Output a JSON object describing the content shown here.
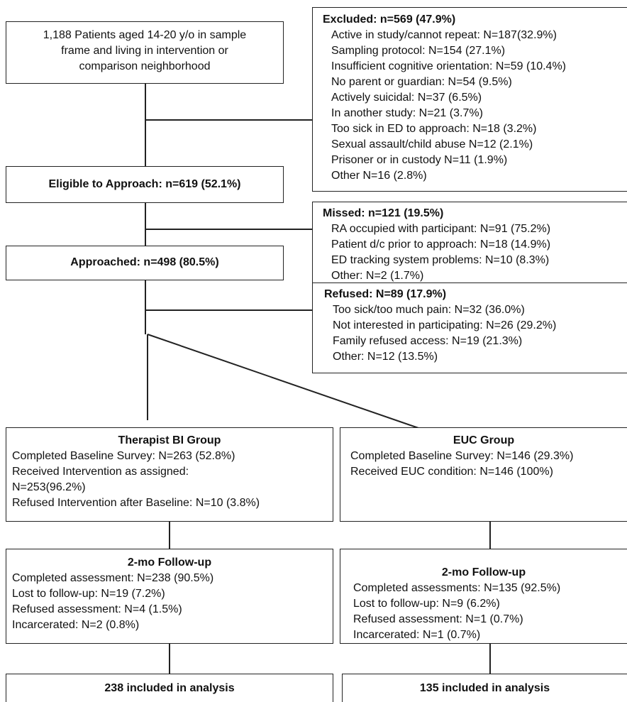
{
  "top": {
    "line1": "1,188 Patients aged 14-20 y/o in sample",
    "line2": "frame and living in intervention or",
    "line3": "comparison neighborhood"
  },
  "excluded": {
    "header": "Excluded: n=569 (47.9%)",
    "items": [
      "Active in study/cannot repeat: N=187(32.9%)",
      "Sampling protocol: N=154 (27.1%)",
      "Insufficient cognitive orientation: N=59 (10.4%)",
      "No parent or guardian:  N=54 (9.5%)",
      "Actively suicidal: N=37 (6.5%)",
      "In another study: N=21 (3.7%)",
      "Too sick in ED to approach: N=18 (3.2%)",
      "Sexual assault/child abuse N=12 (2.1%)",
      "Prisoner or in custody N=11 (1.9%)",
      "Other N=16 (2.8%)"
    ]
  },
  "eligible": "Eligible to Approach: n=619 (52.1%)",
  "missed": {
    "header": "Missed: n=121 (19.5%)",
    "items": [
      "RA occupied with participant: N=91 (75.2%)",
      "Patient d/c prior to approach: N=18 (14.9%)",
      "ED tracking system problems: N=10 (8.3%)",
      "Other: N=2 (1.7%)"
    ]
  },
  "approached": "Approached: n=498 (80.5%)",
  "refused": {
    "header": "Refused: N=89 (17.9%)",
    "items": [
      "Too sick/too much pain: N=32 (36.0%)",
      "Not interested in participating: N=26 (29.2%)",
      "Family refused access: N=19 (21.3%)",
      "Other: N=12 (13.5%)"
    ]
  },
  "therapist": {
    "title": "Therapist BI Group",
    "items": [
      "Completed Baseline Survey: N=263 (52.8%)",
      "Received Intervention as assigned:",
      "N=253(96.2%)",
      "Refused Intervention after Baseline: N=10 (3.8%)"
    ]
  },
  "euc": {
    "title": "EUC Group",
    "items": [
      "Completed Baseline Survey: N=146 (29.3%)",
      "Received EUC condition: N=146 (100%)"
    ]
  },
  "followup_left": {
    "title": "2-mo Follow-up",
    "items": [
      "Completed assessment: N=238 (90.5%)",
      "Lost to follow-up: N=19 (7.2%)",
      "Refused assessment: N=4 (1.5%)",
      "Incarcerated: N=2 (0.8%)"
    ]
  },
  "followup_right": {
    "title": "2-mo Follow-up",
    "items": [
      "Completed assessments: N=135 (92.5%)",
      "Lost to follow-up: N=9 (6.2%)",
      "Refused assessment: N=1 (0.7%)",
      "Incarcerated: N=1  (0.7%)"
    ]
  },
  "analysis_left": "238 included in analysis",
  "analysis_right": "135 included in analysis"
}
